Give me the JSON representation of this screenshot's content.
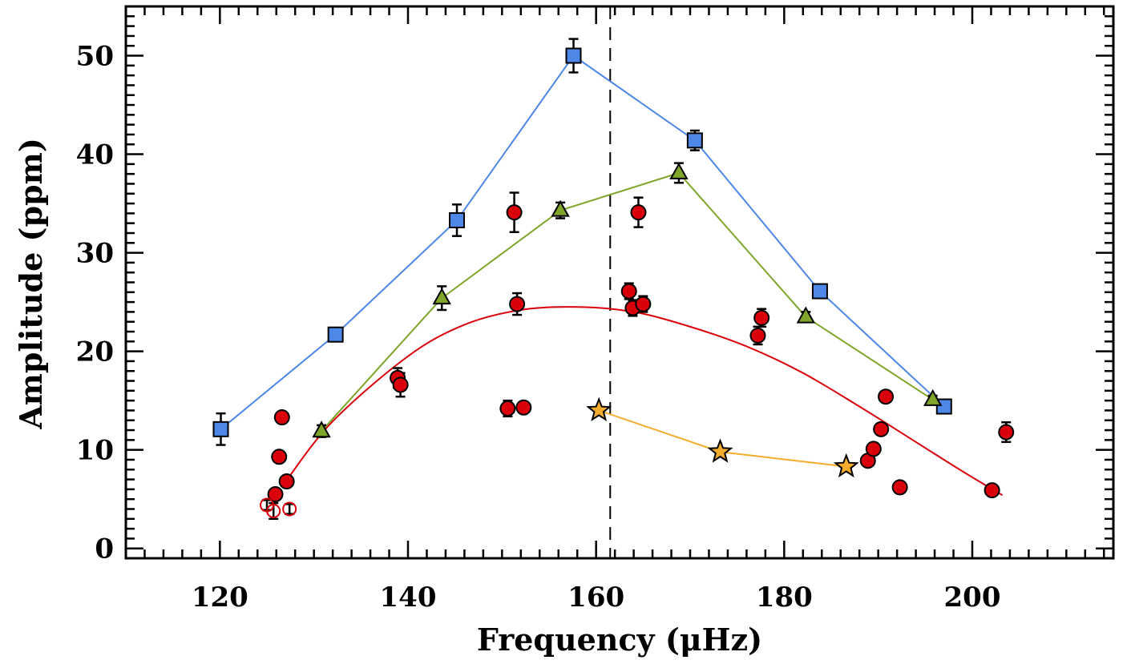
{
  "chart_data": {
    "type": "scatter",
    "title": "",
    "xlabel": "Frequency (μHz)",
    "ylabel": "Amplitude (ppm)",
    "xlim": [
      110,
      215
    ],
    "ylim": [
      -1,
      55
    ],
    "x_ticks": [
      120,
      140,
      160,
      180,
      200
    ],
    "y_ticks": [
      0,
      10,
      20,
      30,
      40,
      50
    ],
    "grid": false,
    "legend": "none",
    "vertical_line": {
      "x": 161.5,
      "style": "dashed",
      "color": "#000000"
    },
    "series": [
      {
        "marker": "square",
        "color": "#4d87e8",
        "line": true,
        "points": [
          {
            "x": 120.1,
            "y": 12.1,
            "err": 1.6
          },
          {
            "x": 132.3,
            "y": 21.7,
            "err": 0.6
          },
          {
            "x": 145.2,
            "y": 33.3,
            "err": 1.6
          },
          {
            "x": 157.6,
            "y": 50.0,
            "err": 1.7
          },
          {
            "x": 170.5,
            "y": 41.4,
            "err": 1.0
          },
          {
            "x": 183.8,
            "y": 26.1,
            "err": 0.5
          },
          {
            "x": 197.0,
            "y": 14.4,
            "err": 0.4
          }
        ]
      },
      {
        "marker": "triangle",
        "color": "#7fa62a",
        "line": true,
        "points": [
          {
            "x": 130.8,
            "y": 11.9,
            "err": 0.6
          },
          {
            "x": 143.6,
            "y": 25.4,
            "err": 1.2
          },
          {
            "x": 156.2,
            "y": 34.3,
            "err": 0.8
          },
          {
            "x": 168.8,
            "y": 38.1,
            "err": 1.0
          },
          {
            "x": 182.3,
            "y": 23.5,
            "err": 0.5
          },
          {
            "x": 195.8,
            "y": 15.1,
            "err": 0.4
          }
        ]
      },
      {
        "marker": "circle",
        "color": "#d9000c",
        "line": false,
        "points": [
          {
            "x": 125.9,
            "y": 5.5,
            "err": 0.5
          },
          {
            "x": 126.3,
            "y": 9.3,
            "err": 0.3
          },
          {
            "x": 126.6,
            "y": 13.3,
            "err": 0.3
          },
          {
            "x": 127.1,
            "y": 6.8,
            "err": 0.3
          },
          {
            "x": 138.9,
            "y": 17.3,
            "err": 1.0
          },
          {
            "x": 139.2,
            "y": 16.6,
            "err": 1.2
          },
          {
            "x": 150.6,
            "y": 14.2,
            "err": 0.8
          },
          {
            "x": 151.3,
            "y": 34.1,
            "err": 2.0
          },
          {
            "x": 151.6,
            "y": 24.8,
            "err": 1.1
          },
          {
            "x": 152.3,
            "y": 14.3,
            "err": 0.5
          },
          {
            "x": 163.5,
            "y": 26.1,
            "err": 0.8
          },
          {
            "x": 163.9,
            "y": 24.4,
            "err": 0.8
          },
          {
            "x": 164.5,
            "y": 34.1,
            "err": 1.5
          },
          {
            "x": 165.0,
            "y": 24.8,
            "err": 0.8
          },
          {
            "x": 177.2,
            "y": 21.6,
            "err": 0.9
          },
          {
            "x": 177.6,
            "y": 23.4,
            "err": 0.9
          },
          {
            "x": 188.9,
            "y": 8.9,
            "err": 0.3
          },
          {
            "x": 189.5,
            "y": 10.1,
            "err": 0.3
          },
          {
            "x": 190.3,
            "y": 12.1,
            "err": 0.3
          },
          {
            "x": 190.8,
            "y": 15.4,
            "err": 0.3
          },
          {
            "x": 192.3,
            "y": 6.2,
            "err": 0.3
          },
          {
            "x": 202.1,
            "y": 5.9,
            "err": 0.5
          },
          {
            "x": 203.6,
            "y": 11.8,
            "err": 1.0
          }
        ]
      },
      {
        "marker": "open-circle",
        "color": "#d9000c",
        "line": false,
        "points": [
          {
            "x": 125.0,
            "y": 4.4,
            "err": 0.5
          },
          {
            "x": 125.7,
            "y": 3.8,
            "err": 0.8
          },
          {
            "x": 127.4,
            "y": 4.0,
            "err": 0.5
          }
        ]
      },
      {
        "marker": "star",
        "color": "#f5ab2c",
        "line": true,
        "points": [
          {
            "x": 160.3,
            "y": 14.0
          },
          {
            "x": 173.2,
            "y": 9.8
          },
          {
            "x": 186.6,
            "y": 8.3
          }
        ]
      }
    ],
    "fit_curve": {
      "color": "#d9000c",
      "x_range": [
        127.0,
        203.2
      ],
      "points": [
        {
          "x": 127.0,
          "y": 6.8
        },
        {
          "x": 132.0,
          "y": 12.9
        },
        {
          "x": 140.0,
          "y": 19.5
        },
        {
          "x": 146.0,
          "y": 22.7
        },
        {
          "x": 152.0,
          "y": 24.2
        },
        {
          "x": 158.0,
          "y": 24.5
        },
        {
          "x": 164.0,
          "y": 24.0
        },
        {
          "x": 170.0,
          "y": 22.5
        },
        {
          "x": 176.0,
          "y": 20.5
        },
        {
          "x": 182.0,
          "y": 17.8
        },
        {
          "x": 188.0,
          "y": 14.4
        },
        {
          "x": 194.0,
          "y": 10.8
        },
        {
          "x": 199.0,
          "y": 7.8
        },
        {
          "x": 203.2,
          "y": 5.4
        }
      ]
    }
  }
}
